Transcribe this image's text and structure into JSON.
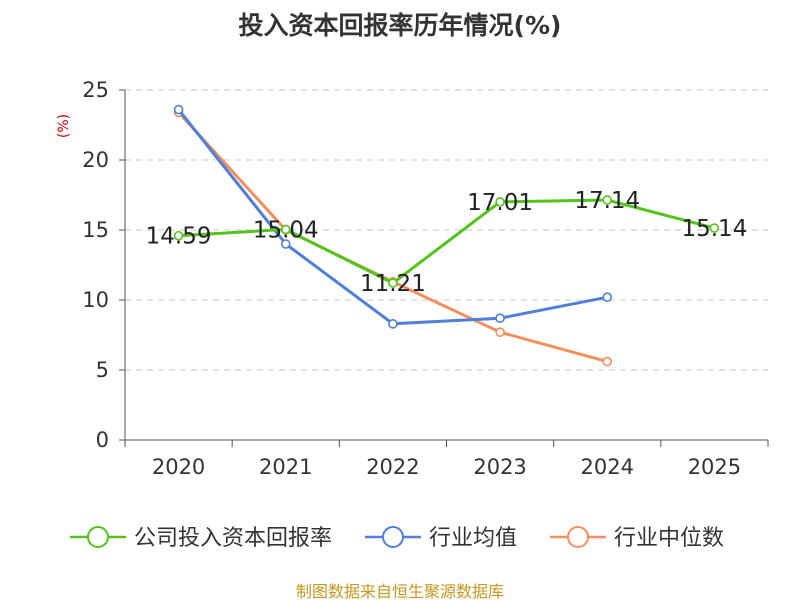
{
  "chart_data": {
    "type": "line",
    "title": "投入资本回报率历年情况(%)",
    "ylabel": "(%)",
    "xlabel": "",
    "ylim": [
      0,
      25
    ],
    "yticks": [
      0,
      5,
      10,
      15,
      20,
      25
    ],
    "grid": true,
    "legend_position": "bottom",
    "categories": [
      "2020",
      "2021",
      "2022",
      "2023",
      "2024",
      "2025"
    ],
    "series": [
      {
        "name": "公司投入资本回报率",
        "color": "#52c41a",
        "values": [
          14.59,
          15.04,
          11.21,
          17.01,
          17.14,
          15.14
        ],
        "labels": [
          "14.59",
          "15.04",
          "11.21",
          "17.01",
          "17.14",
          "15.14"
        ]
      },
      {
        "name": "行业均值",
        "color": "#4f7fd8",
        "values": [
          23.6,
          14.0,
          8.3,
          8.7,
          10.2,
          null
        ]
      },
      {
        "name": "行业中位数",
        "color": "#f48e5b",
        "values": [
          23.4,
          15.0,
          11.3,
          7.7,
          5.6,
          null
        ]
      }
    ]
  },
  "source": "制图数据来自恒生聚源数据库"
}
